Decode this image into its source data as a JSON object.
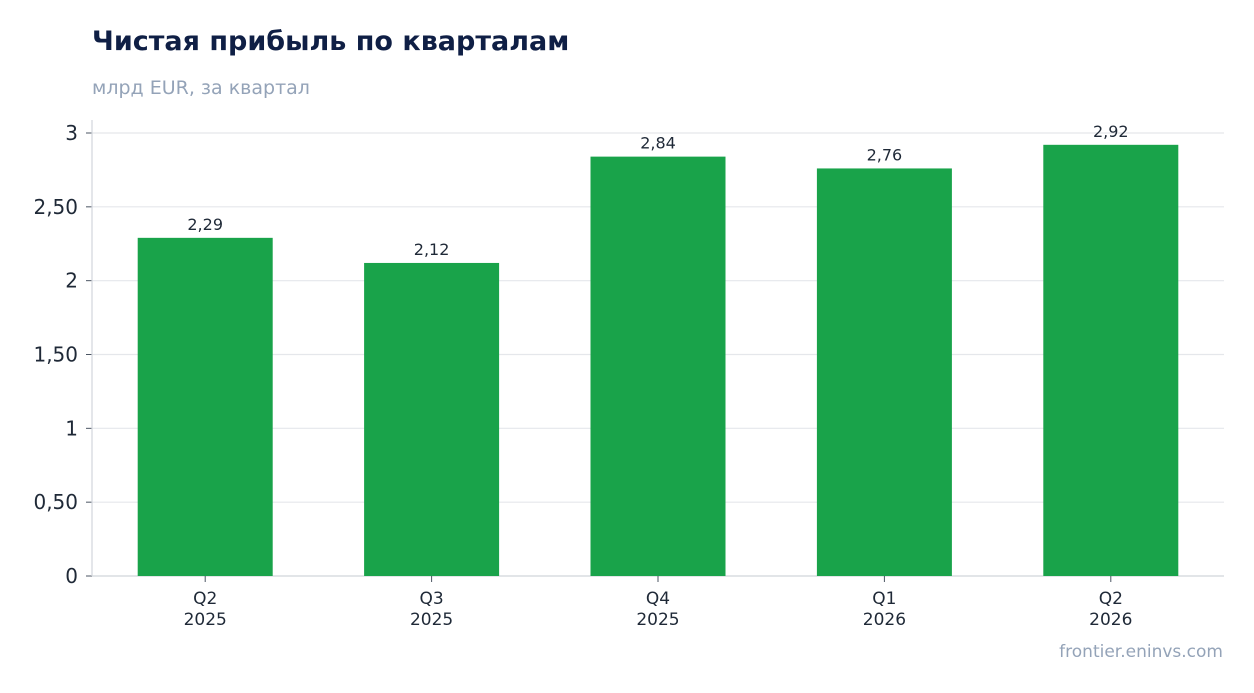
{
  "header": {
    "title": "Чистая прибыль по кварталам",
    "subtitle": "млрд EUR, за квартал"
  },
  "footer": {
    "source": "frontier.eninvs.com"
  },
  "colors": {
    "bar": "#19a34a",
    "grid": "#e5e7eb",
    "axis": "#d1d5db"
  },
  "chart_data": {
    "type": "bar",
    "title": "Чистая прибыль по кварталам",
    "subtitle": "млрд EUR, за квартал",
    "categories": [
      [
        "Q2",
        "2025"
      ],
      [
        "Q3",
        "2025"
      ],
      [
        "Q4",
        "2025"
      ],
      [
        "Q1",
        "2026"
      ],
      [
        "Q2",
        "2026"
      ]
    ],
    "values": [
      2.29,
      2.12,
      2.84,
      2.76,
      2.92
    ],
    "value_labels": [
      "2,29",
      "2,12",
      "2,84",
      "2,76",
      "2,92"
    ],
    "yticks": [
      0,
      0.5,
      1,
      1.5,
      2,
      2.5,
      3
    ],
    "ytick_labels": [
      "0",
      "0,50",
      "1",
      "1,50",
      "2",
      "2,50",
      "3"
    ],
    "ylim": [
      0,
      3
    ],
    "xlabel": "",
    "ylabel": "",
    "grid": true,
    "legend": "none"
  }
}
